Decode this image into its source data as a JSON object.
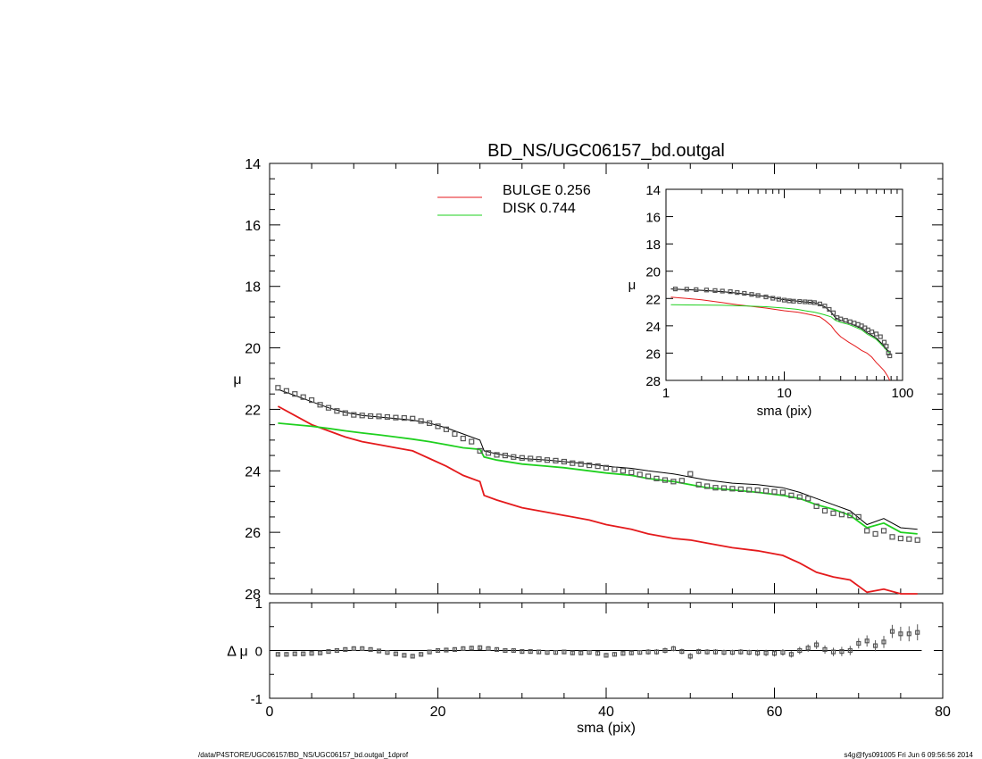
{
  "title": "BD_NS/UGC06157_bd.outgal",
  "footer_left": "/data/P4STORE/UGC06157/BD_NS/UGC06157_bd.outgal_1dprof",
  "footer_right": "s4g@fys091005  Fri Jun  6 09:56:56 2014",
  "colors": {
    "bulge": "#e41a1c",
    "disk": "#1fd01f",
    "data": "#555555",
    "model": "#000000"
  },
  "chart_data": [
    {
      "id": "main",
      "type": "line",
      "title": "BD_NS/UGC06157_bd.outgal",
      "xlabel": "",
      "ylabel": "μ",
      "xlim": [
        0,
        80
      ],
      "ylim": [
        28,
        14
      ],
      "yticks": [
        "14",
        "16",
        "18",
        "20",
        "22",
        "24",
        "26",
        "28"
      ],
      "legend": {
        "position": "top-left",
        "entries": [
          {
            "label": "BULGE  0.256",
            "color": "#e41a1c"
          },
          {
            "label": "DISK  0.744",
            "color": "#1fd01f"
          }
        ]
      },
      "x": [
        1,
        3,
        5,
        7,
        9,
        11,
        13,
        15,
        17,
        19,
        21,
        23,
        25,
        25.5,
        27,
        30,
        33,
        35,
        38,
        40,
        43,
        45,
        48,
        50,
        52,
        55,
        58,
        61,
        63,
        65,
        67,
        69,
        71,
        73,
        75,
        77
      ],
      "series": [
        {
          "name": "BULGE",
          "values": [
            21.9,
            22.2,
            22.5,
            22.7,
            22.9,
            23.05,
            23.15,
            23.25,
            23.35,
            23.6,
            23.85,
            24.15,
            24.35,
            24.8,
            24.95,
            25.2,
            25.35,
            25.45,
            25.6,
            25.75,
            25.9,
            26.05,
            26.2,
            26.25,
            26.35,
            26.5,
            26.6,
            26.75,
            27.0,
            27.3,
            27.45,
            27.55,
            27.95,
            27.85,
            28.0,
            28.0
          ]
        },
        {
          "name": "DISK",
          "values": [
            22.45,
            22.5,
            22.55,
            22.62,
            22.7,
            22.77,
            22.83,
            22.9,
            22.97,
            23.05,
            23.15,
            23.25,
            23.3,
            23.55,
            23.65,
            23.78,
            23.85,
            23.9,
            24.0,
            24.07,
            24.15,
            24.25,
            24.35,
            24.45,
            24.55,
            24.62,
            24.7,
            24.8,
            24.9,
            25.1,
            25.25,
            25.45,
            25.85,
            25.7,
            26.0,
            26.05
          ]
        },
        {
          "name": "MODEL",
          "values": [
            21.35,
            21.55,
            21.75,
            21.95,
            22.1,
            22.2,
            22.25,
            22.3,
            22.35,
            22.45,
            22.6,
            22.8,
            23.0,
            23.35,
            23.45,
            23.6,
            23.65,
            23.7,
            23.78,
            23.85,
            23.92,
            24.0,
            24.1,
            24.2,
            24.3,
            24.4,
            24.45,
            24.55,
            24.7,
            24.9,
            25.1,
            25.3,
            25.75,
            25.55,
            25.85,
            25.9
          ]
        }
      ],
      "points": {
        "x": [
          1,
          2,
          3,
          4,
          5,
          6,
          7,
          8,
          9,
          10,
          11,
          12,
          13,
          14,
          15,
          16,
          17,
          18,
          19,
          20,
          21,
          22,
          23,
          24,
          25,
          26,
          27,
          28,
          29,
          30,
          31,
          32,
          33,
          34,
          35,
          36,
          37,
          38,
          39,
          40,
          41,
          42,
          43,
          44,
          45,
          46,
          47,
          48,
          49,
          50,
          51,
          52,
          53,
          54,
          55,
          56,
          57,
          58,
          59,
          60,
          61,
          62,
          63,
          64,
          65,
          66,
          67,
          68,
          69,
          70,
          71,
          72,
          73,
          74,
          75,
          76,
          77
        ],
        "y": [
          21.3,
          21.4,
          21.5,
          21.6,
          21.7,
          21.85,
          21.95,
          22.05,
          22.12,
          22.18,
          22.2,
          22.22,
          22.23,
          22.25,
          22.27,
          22.28,
          22.3,
          22.38,
          22.45,
          22.55,
          22.65,
          22.8,
          22.95,
          23.05,
          23.35,
          23.42,
          23.48,
          23.5,
          23.55,
          23.58,
          23.6,
          23.62,
          23.65,
          23.67,
          23.7,
          23.75,
          23.78,
          23.82,
          23.85,
          23.9,
          23.95,
          24.0,
          24.05,
          24.12,
          24.18,
          24.25,
          24.3,
          24.35,
          24.32,
          24.1,
          24.45,
          24.5,
          24.55,
          24.56,
          24.58,
          24.6,
          24.62,
          24.63,
          24.65,
          24.68,
          24.7,
          24.8,
          24.85,
          24.9,
          25.15,
          25.3,
          25.38,
          25.42,
          25.45,
          25.5,
          25.95,
          26.05,
          25.95,
          26.15,
          26.2,
          26.22,
          26.25
        ]
      }
    },
    {
      "id": "inset",
      "type": "line",
      "xlabel": "sma (pix)",
      "ylabel": "μ",
      "xscale": "log",
      "xlim": [
        1,
        100
      ],
      "ylim": [
        28,
        14
      ],
      "xticks": [
        "1",
        "10",
        "100"
      ],
      "yticks": [
        "14",
        "16",
        "18",
        "20",
        "22",
        "24",
        "26",
        "28"
      ],
      "x": [
        1.1,
        1.5,
        2,
        3,
        4,
        5,
        7,
        10,
        13,
        15,
        18,
        20,
        22,
        25,
        27,
        30,
        35,
        40,
        45,
        50,
        55,
        60,
        65,
        70,
        75,
        78
      ],
      "series": [
        {
          "name": "BULGE",
          "values": [
            21.9,
            22.0,
            22.1,
            22.3,
            22.45,
            22.55,
            22.7,
            22.9,
            23.0,
            23.1,
            23.25,
            23.35,
            23.6,
            24.0,
            24.4,
            24.8,
            25.2,
            25.5,
            25.8,
            26.0,
            26.3,
            26.7,
            27.0,
            27.3,
            27.7,
            28.0
          ]
        },
        {
          "name": "DISK",
          "values": [
            22.45,
            22.47,
            22.48,
            22.5,
            22.53,
            22.55,
            22.6,
            22.7,
            22.8,
            22.9,
            23.0,
            23.1,
            23.2,
            23.35,
            23.6,
            23.75,
            23.9,
            24.1,
            24.3,
            24.6,
            24.8,
            25.0,
            25.3,
            25.6,
            25.9,
            26.0
          ]
        },
        {
          "name": "MODEL",
          "values": [
            21.3,
            21.35,
            21.4,
            21.5,
            21.6,
            21.7,
            21.85,
            22.1,
            22.2,
            22.25,
            22.3,
            22.45,
            22.6,
            23.0,
            23.4,
            23.6,
            23.8,
            24.0,
            24.2,
            24.5,
            24.7,
            24.9,
            25.2,
            25.5,
            25.8,
            25.9
          ]
        }
      ],
      "points": {
        "x": [
          1.2,
          1.5,
          1.8,
          2.2,
          2.6,
          3,
          3.5,
          4,
          4.6,
          5.3,
          6,
          7,
          8,
          9,
          10,
          11,
          12,
          13.5,
          15,
          16.5,
          18,
          20,
          22,
          24,
          26,
          28,
          30,
          33,
          36,
          39,
          42,
          45,
          48,
          51,
          55,
          60,
          65,
          70,
          73,
          76,
          78
        ],
        "y": [
          21.3,
          21.32,
          21.35,
          21.38,
          21.42,
          21.46,
          21.5,
          21.56,
          21.62,
          21.7,
          21.78,
          21.88,
          21.98,
          22.05,
          22.12,
          22.17,
          22.2,
          22.22,
          22.24,
          22.26,
          22.3,
          22.4,
          22.55,
          22.8,
          23.05,
          23.4,
          23.5,
          23.6,
          23.7,
          23.8,
          23.9,
          24.0,
          24.15,
          24.3,
          24.45,
          24.6,
          24.8,
          25.2,
          25.5,
          26.0,
          26.2
        ]
      }
    },
    {
      "id": "residual",
      "type": "scatter",
      "xlabel": "sma (pix)",
      "ylabel": "Δ μ",
      "xlim": [
        0,
        80
      ],
      "ylim": [
        -1,
        1
      ],
      "xticks": [
        "0",
        "20",
        "40",
        "60",
        "80"
      ],
      "yticks": [
        "1",
        "0",
        "-1"
      ],
      "x": [
        1,
        2,
        3,
        4,
        5,
        6,
        7,
        8,
        9,
        10,
        11,
        12,
        13,
        14,
        15,
        16,
        17,
        18,
        19,
        20,
        21,
        22,
        23,
        24,
        25,
        26,
        27,
        28,
        29,
        30,
        31,
        32,
        33,
        34,
        35,
        36,
        37,
        38,
        39,
        40,
        41,
        42,
        43,
        44,
        45,
        46,
        47,
        48,
        49,
        50,
        51,
        52,
        53,
        54,
        55,
        56,
        57,
        58,
        59,
        60,
        61,
        62,
        63,
        64,
        65,
        66,
        67,
        68,
        69,
        70,
        71,
        72,
        73,
        74,
        75,
        76,
        77
      ],
      "values": [
        -0.08,
        -0.08,
        -0.07,
        -0.07,
        -0.06,
        -0.05,
        -0.02,
        0.0,
        0.02,
        0.04,
        0.04,
        0.02,
        -0.01,
        -0.04,
        -0.07,
        -0.1,
        -0.12,
        -0.08,
        -0.03,
        0.0,
        0.01,
        0.02,
        0.04,
        0.05,
        0.06,
        0.04,
        0.02,
        0.0,
        0.0,
        -0.02,
        -0.02,
        -0.03,
        -0.04,
        -0.04,
        -0.03,
        -0.05,
        -0.05,
        -0.04,
        -0.06,
        -0.1,
        -0.08,
        -0.06,
        -0.05,
        -0.04,
        -0.03,
        -0.03,
        0.0,
        0.04,
        -0.02,
        -0.12,
        -0.02,
        -0.03,
        -0.03,
        -0.04,
        -0.04,
        -0.03,
        -0.04,
        -0.05,
        -0.05,
        -0.06,
        -0.04,
        -0.08,
        0.0,
        0.05,
        0.12,
        0.02,
        -0.03,
        -0.02,
        0.0,
        0.15,
        0.2,
        0.1,
        0.18,
        0.4,
        0.35,
        0.35,
        0.38
      ],
      "errors": [
        0.01,
        0.01,
        0.01,
        0.01,
        0.01,
        0.01,
        0.01,
        0.01,
        0.01,
        0.01,
        0.01,
        0.01,
        0.01,
        0.01,
        0.01,
        0.01,
        0.01,
        0.01,
        0.01,
        0.01,
        0.01,
        0.01,
        0.01,
        0.01,
        0.01,
        0.01,
        0.01,
        0.01,
        0.01,
        0.01,
        0.01,
        0.01,
        0.01,
        0.01,
        0.01,
        0.01,
        0.01,
        0.01,
        0.01,
        0.01,
        0.01,
        0.01,
        0.01,
        0.01,
        0.02,
        0.02,
        0.02,
        0.02,
        0.02,
        0.03,
        0.02,
        0.02,
        0.02,
        0.02,
        0.02,
        0.02,
        0.02,
        0.03,
        0.03,
        0.03,
        0.03,
        0.03,
        0.04,
        0.04,
        0.05,
        0.05,
        0.05,
        0.06,
        0.06,
        0.07,
        0.08,
        0.08,
        0.09,
        0.1,
        0.11,
        0.12,
        0.13
      ]
    }
  ]
}
